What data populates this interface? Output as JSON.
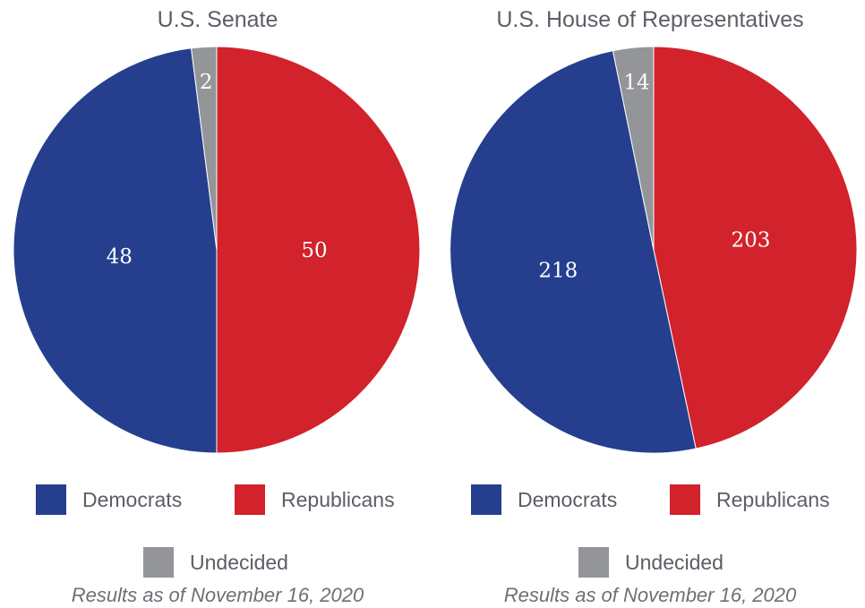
{
  "colors": {
    "democrats": "#253f8e",
    "republicans": "#d2222b",
    "undecided": "#939598"
  },
  "legend": {
    "democrats": "Democrats",
    "republicans": "Republicans",
    "undecided": "Undecided"
  },
  "note": "Results as of November 16, 2020",
  "chart_data": [
    {
      "type": "pie",
      "title": "U.S. Senate",
      "slices": [
        {
          "name": "Republicans",
          "value": 50,
          "label": "50",
          "color": "#d2222b"
        },
        {
          "name": "Democrats",
          "value": 48,
          "label": "48",
          "color": "#253f8e"
        },
        {
          "name": "Undecided",
          "value": 2,
          "label": "2",
          "color": "#939598"
        }
      ],
      "start": "12 o'clock",
      "direction": "clockwise",
      "legend": [
        "Democrats",
        "Republicans",
        "Undecided"
      ],
      "legend_position": "bottom"
    },
    {
      "type": "pie",
      "title": "U.S. House of Representatives",
      "slices": [
        {
          "name": "Republicans",
          "value": 203,
          "label": "203",
          "color": "#d2222b"
        },
        {
          "name": "Democrats",
          "value": 218,
          "label": "218",
          "color": "#253f8e"
        },
        {
          "name": "Undecided",
          "value": 14,
          "label": "14",
          "color": "#939598"
        }
      ],
      "start": "12 o'clock",
      "direction": "clockwise",
      "legend": [
        "Democrats",
        "Republicans",
        "Undecided"
      ],
      "legend_position": "bottom"
    }
  ]
}
